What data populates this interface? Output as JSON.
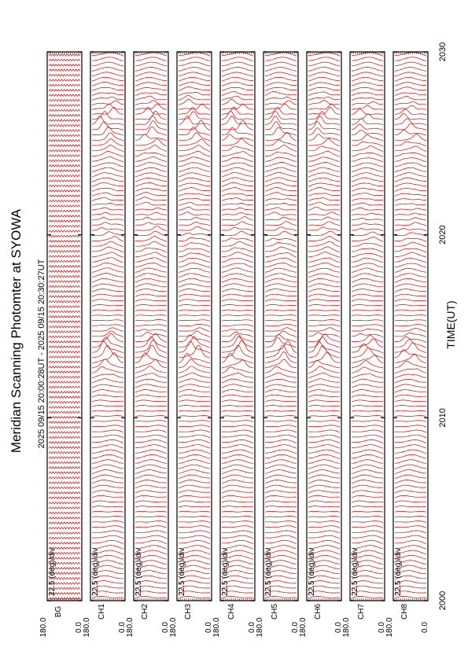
{
  "title": "Meridian Scanning Photomter at SYOWA",
  "time_range": "2025 09/15 20:00:28UT - 2025 09/15 20:30:27UT",
  "xlabel": "TIME(UT)",
  "colors": {
    "trace": "#dd0000",
    "axes": "#000000",
    "background": "#ffffff"
  },
  "chart_data": {
    "type": "line",
    "x_ticks": [
      "2000",
      "2010",
      "2020",
      "2030"
    ],
    "xlim": [
      "20:00",
      "20:30"
    ],
    "ylim": [
      0.0,
      180.0
    ],
    "y_tick_labels": [
      "180.0",
      "0.0"
    ],
    "grid": false,
    "panels": [
      {
        "channel": "BG",
        "scale": "22.5 (deg)/div"
      },
      {
        "channel": "CH1",
        "scale": "22.5 (deg)/div"
      },
      {
        "channel": "CH2",
        "scale": "22.5 (deg)/div"
      },
      {
        "channel": "CH3",
        "scale": "22.5 (deg)/div"
      },
      {
        "channel": "CH4",
        "scale": "22.5 (deg)/div"
      },
      {
        "channel": "CH5",
        "scale": "22.5 (deg)/div"
      },
      {
        "channel": "CH6",
        "scale": "22.5 (deg)/div"
      },
      {
        "channel": "CH7",
        "scale": "22.5 (deg)/div"
      },
      {
        "channel": "CH8",
        "scale": "22.5 (deg)/div"
      }
    ]
  }
}
